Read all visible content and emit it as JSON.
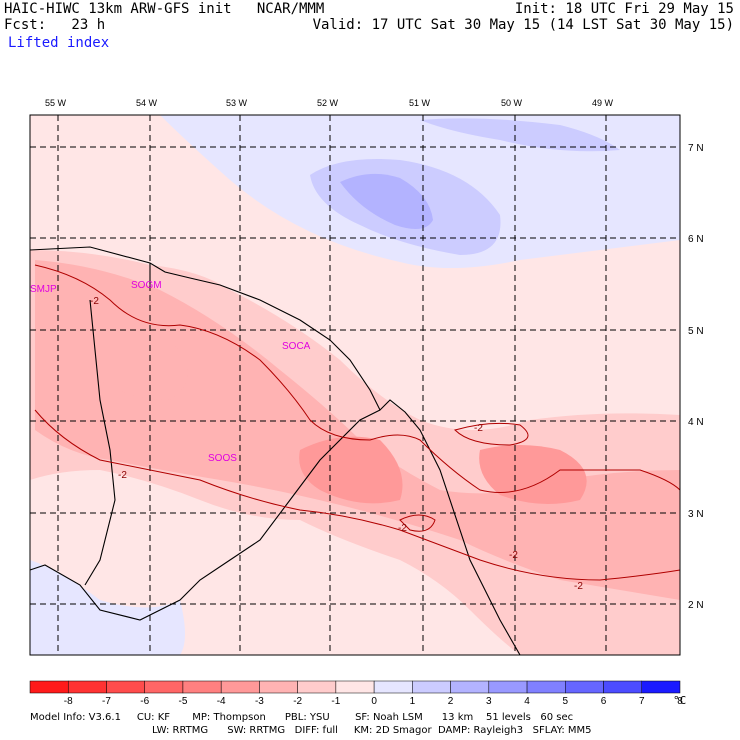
{
  "header": {
    "model_line": "HAIC-HIWC 13km ARW-GFS init   NCAR/MMM",
    "init_line": "Init: 18 UTC Fri 29 May 15",
    "fcst_line": "Fcst:   23 h",
    "valid_line": "Valid: 17 UTC Sat 30 May 15 (14 LST Sat 30 May 15)",
    "field_name": "Lifted index"
  },
  "map": {
    "lon_labels": [
      "55 W",
      "54 W",
      "53 W",
      "52 W",
      "51 W",
      "50 W",
      "49 W"
    ],
    "lat_labels": [
      "7 N",
      "6 N",
      "5 N",
      "4 N",
      "3 N",
      "2 N"
    ],
    "stations": [
      "SMJP",
      "SOGM",
      "SOCA",
      "SOOS"
    ],
    "contour_labels": [
      "-2",
      "-2",
      "-2",
      "-2",
      "-2",
      "-2"
    ]
  },
  "colorbar": {
    "ticks": [
      "-8",
      "-7",
      "-6",
      "-5",
      "-4",
      "-3",
      "-2",
      "-1",
      "0",
      "1",
      "2",
      "3",
      "4",
      "5",
      "6",
      "7",
      "8"
    ],
    "unit": "°C",
    "colors": [
      "#ff1a1a",
      "#ff3333",
      "#ff4c4c",
      "#ff6666",
      "#ff8080",
      "#ff9999",
      "#ffb3b3",
      "#ffcccc",
      "#ffe6e6",
      "#e6e6ff",
      "#ccccff",
      "#b3b3ff",
      "#9999ff",
      "#8080ff",
      "#6666ff",
      "#4c4cff",
      "#1a1aff"
    ]
  },
  "footer": {
    "line1": "Model Info: V3.6.1     CU: KF       MP: Thompson      PBL: YSU        SF: Noah LSM      13 km    51 levels   60 sec",
    "line2": "LW: RRTMG      SW: RRTMG   DIFF: full     KM: 2D Smagor  DAMP: Rayleigh3   SFLAY: MM5"
  }
}
